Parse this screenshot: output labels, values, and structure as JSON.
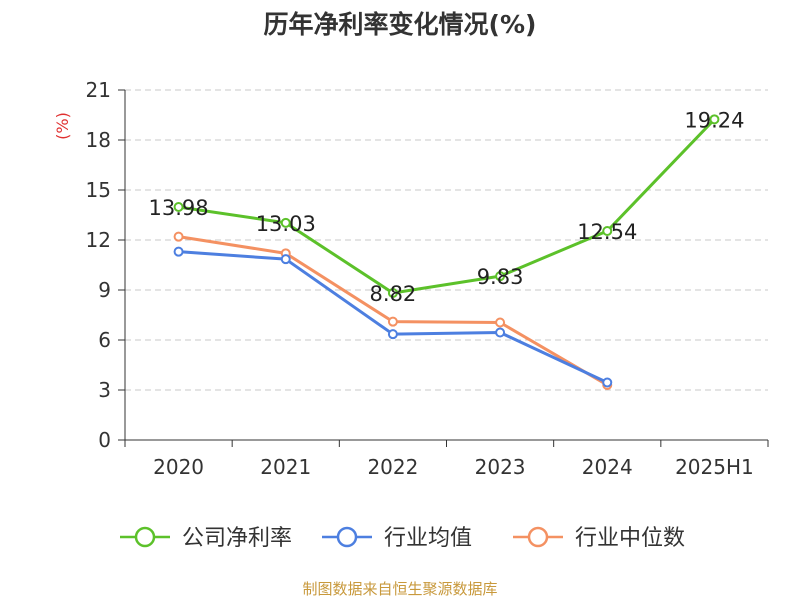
{
  "chart_data": {
    "type": "line",
    "title": "历年净利率变化情况(%)",
    "ylabel": "(%)",
    "xlabel": "",
    "categories": [
      "2020",
      "2021",
      "2022",
      "2023",
      "2024",
      "2025H1"
    ],
    "ylim": [
      0,
      21
    ],
    "yticks": [
      0,
      3,
      6,
      9,
      12,
      15,
      18,
      21
    ],
    "grid": true,
    "legend_position": "bottom",
    "series": [
      {
        "name": "公司净利率",
        "color": "#5cc12a",
        "values": [
          13.98,
          13.03,
          8.82,
          9.83,
          12.54,
          19.24
        ],
        "labels": [
          "13.98",
          "13.03",
          "8.82",
          "9.83",
          "12.54",
          "19.24"
        ]
      },
      {
        "name": "行业均值",
        "color": "#4d7fe0",
        "values": [
          11.3,
          10.85,
          6.35,
          6.45,
          3.45,
          null
        ]
      },
      {
        "name": "行业中位数",
        "color": "#f49162",
        "values": [
          12.2,
          11.2,
          7.1,
          7.05,
          3.3,
          null
        ]
      }
    ]
  },
  "footer": {
    "source": "制图数据来自恒生聚源数据库",
    "source_color": "#c8993c"
  }
}
